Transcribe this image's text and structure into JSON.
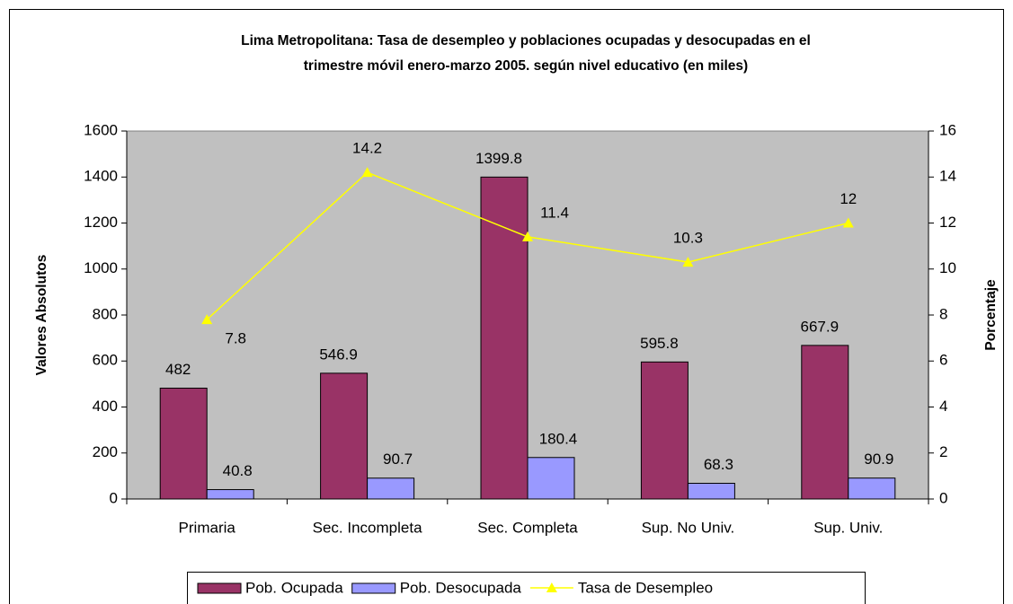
{
  "chart_data": {
    "type": "bar",
    "title": [
      "Lima Metropolitana: Tasa de desempleo y poblaciones ocupadas y desocupadas en el",
      "trimestre móvil enero-marzo 2005. según nivel educativo (en miles)"
    ],
    "y_label": "Valores Absolutos",
    "y2_label": "Porcentaje",
    "categories": [
      "Primaria",
      "Sec. Incompleta",
      "Sec. Completa",
      "Sup. No Univ.",
      "Sup. Univ."
    ],
    "series": [
      {
        "name": "Pob. Ocupada",
        "type": "bar",
        "color": "#993366",
        "values": [
          482,
          546.9,
          1399.8,
          595.8,
          667.9
        ]
      },
      {
        "name": "Pob. Desocupada",
        "type": "bar",
        "color": "#9999ff",
        "values": [
          40.8,
          90.7,
          180.4,
          68.3,
          90.9
        ]
      },
      {
        "name": "Tasa de Desempleo",
        "type": "line",
        "axis": "y2",
        "color": "#ffff00",
        "values": [
          7.8,
          14.2,
          11.4,
          10.3,
          12
        ]
      }
    ],
    "ylim": [
      0,
      1600
    ],
    "yticks": [
      0,
      200,
      400,
      600,
      800,
      1000,
      1200,
      1400,
      1600
    ],
    "y2lim": [
      0,
      16
    ],
    "y2ticks": [
      0,
      2,
      4,
      6,
      8,
      10,
      12,
      14,
      16
    ],
    "grid": false,
    "legend": "bottom",
    "plot_background": "#c0c0c0"
  }
}
